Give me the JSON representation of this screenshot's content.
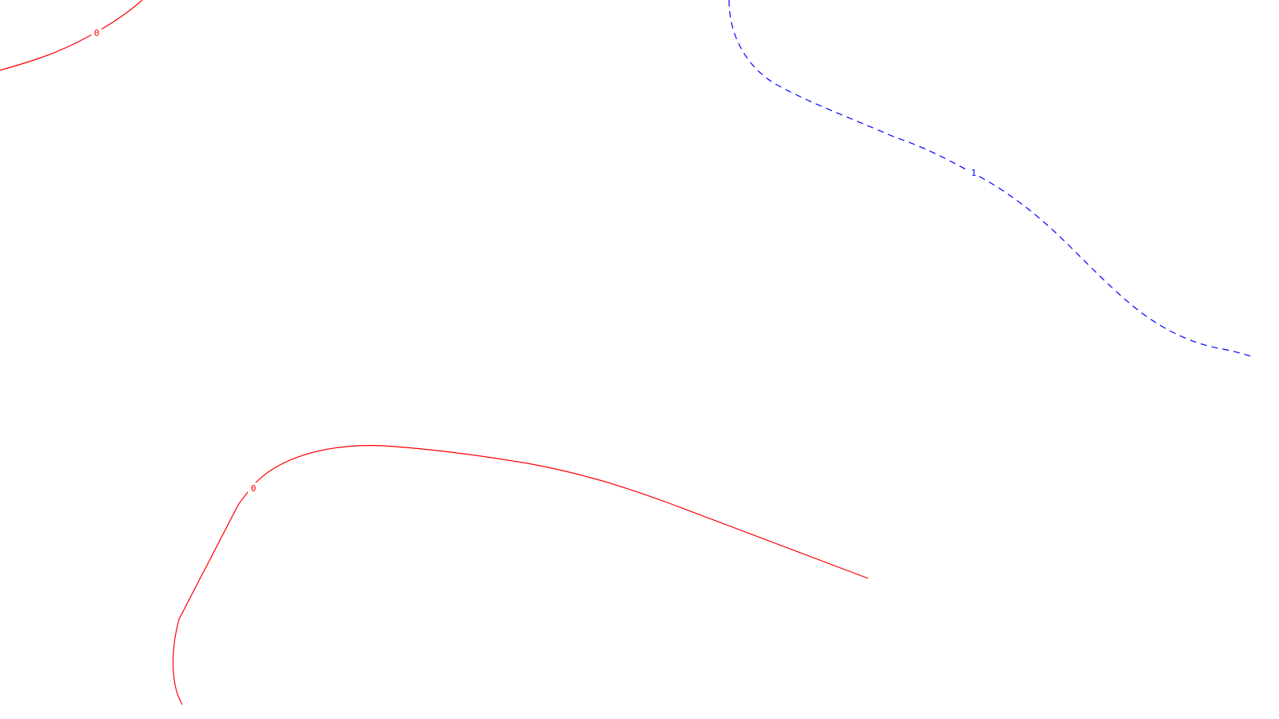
{
  "contours": [
    {
      "id": "contour-0-top-left",
      "level_label": "0",
      "color": "#ff0000",
      "style": "solid"
    },
    {
      "id": "contour-0-bottom",
      "level_label": "0",
      "color": "#ff0000",
      "style": "solid"
    },
    {
      "id": "contour-1-right",
      "level_label": "1",
      "color": "#0000ff",
      "style": "dashed"
    }
  ]
}
